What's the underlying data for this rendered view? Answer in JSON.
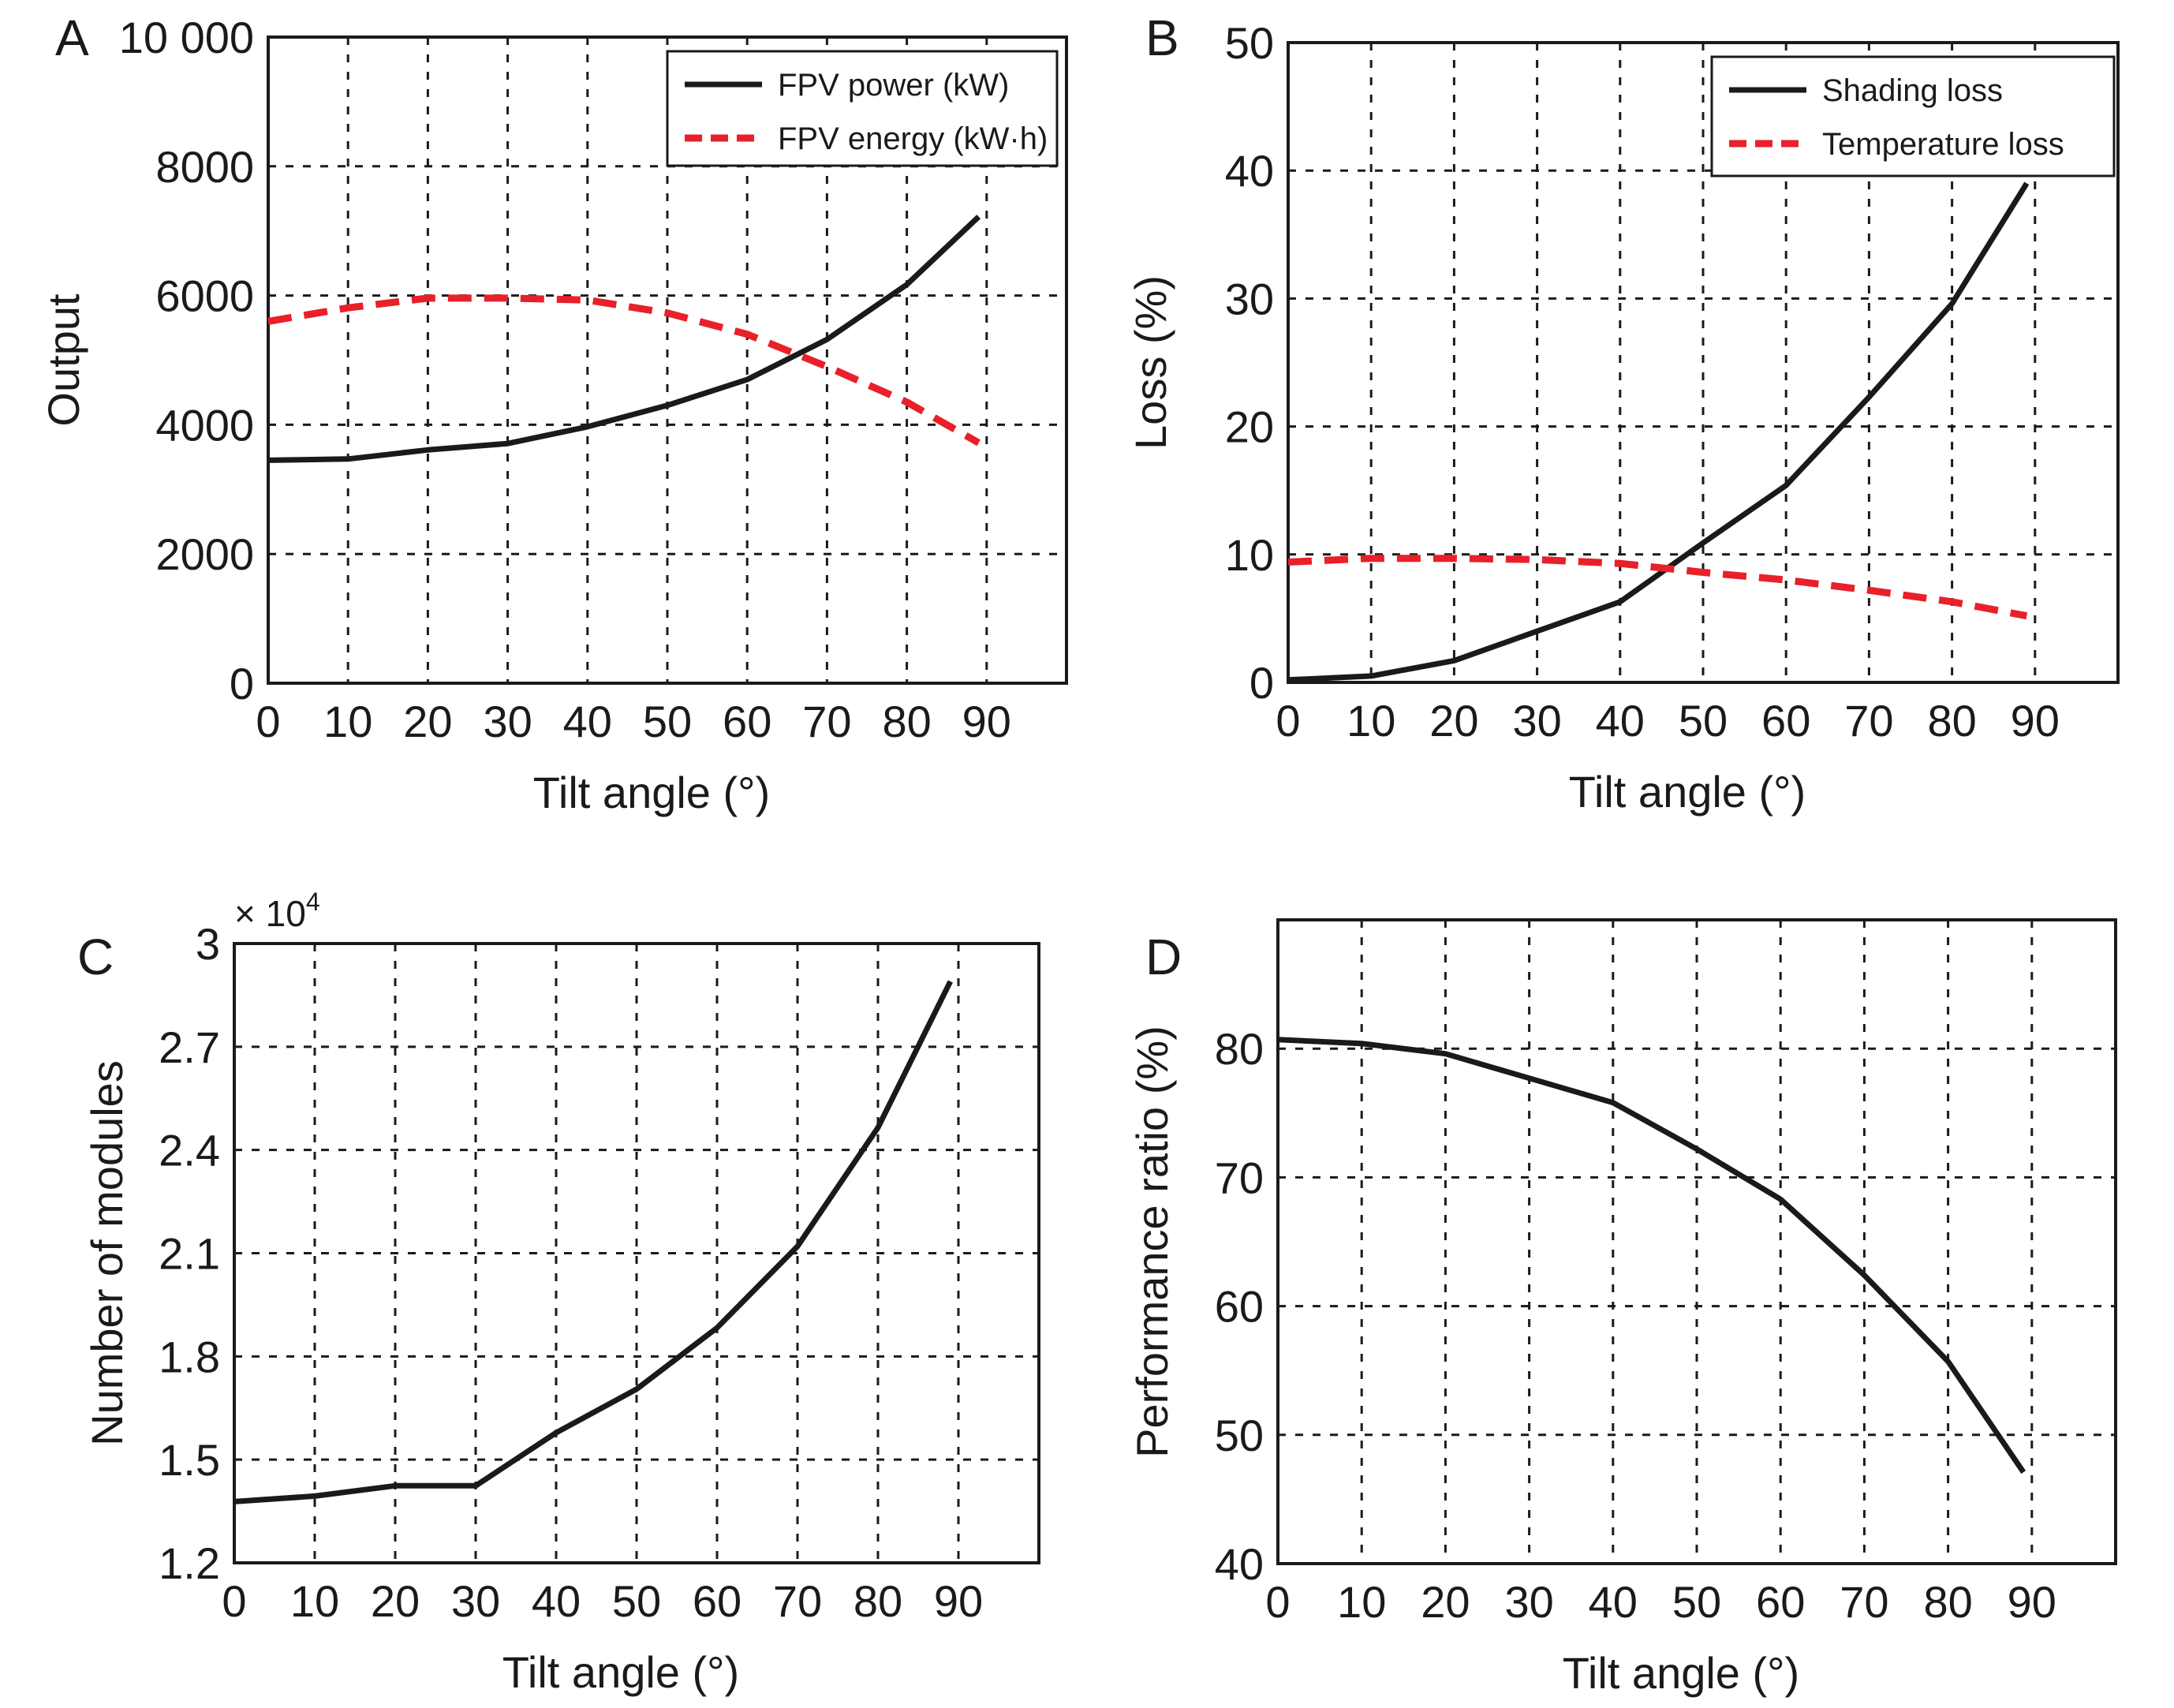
{
  "figure": {
    "panels": [
      "A",
      "B",
      "C",
      "D"
    ]
  },
  "chart_data": [
    {
      "panel": "A",
      "type": "line",
      "title": "",
      "xlabel": "Tilt angle (°)",
      "ylabel": "Output",
      "xlim": [
        0,
        100
      ],
      "ylim": [
        0,
        10000
      ],
      "xticks": [
        0,
        10,
        20,
        30,
        40,
        50,
        60,
        70,
        80,
        90
      ],
      "xtick_labels": [
        "0",
        "10",
        "20",
        "30",
        "40",
        "50",
        "60",
        "70",
        "80",
        "90"
      ],
      "yticks": [
        0,
        2000,
        4000,
        6000,
        8000,
        10000
      ],
      "ytick_labels": [
        "0",
        "2000",
        "4000",
        "6000",
        "8000",
        "10 000"
      ],
      "y_multiplier": "",
      "grid": true,
      "legend": "top-right",
      "x": [
        0,
        10,
        20,
        30,
        40,
        50,
        60,
        70,
        80,
        89
      ],
      "series": [
        {
          "name": "FPV power (kW)",
          "color": "#1a1a1a",
          "style": "solid",
          "values": [
            3450,
            3470,
            3610,
            3710,
            3970,
            4300,
            4700,
            5320,
            6170,
            7220
          ]
        },
        {
          "name": "FPV energy (kW·h)",
          "color": "#e8202a",
          "style": "dashed",
          "values": [
            5600,
            5810,
            5960,
            5960,
            5930,
            5730,
            5400,
            4900,
            4350,
            3720
          ]
        }
      ]
    },
    {
      "panel": "B",
      "type": "line",
      "title": "",
      "xlabel": "Tilt angle (°)",
      "ylabel": "Loss (%)",
      "xlim": [
        0,
        100
      ],
      "ylim": [
        0,
        50
      ],
      "xticks": [
        0,
        10,
        20,
        30,
        40,
        50,
        60,
        70,
        80,
        90
      ],
      "xtick_labels": [
        "0",
        "10",
        "20",
        "30",
        "40",
        "50",
        "60",
        "70",
        "80",
        "90"
      ],
      "yticks": [
        0,
        10,
        20,
        30,
        40,
        50
      ],
      "ytick_labels": [
        "0",
        "10",
        "20",
        "30",
        "40",
        "50"
      ],
      "y_multiplier": "",
      "grid": true,
      "legend": "top-right",
      "x": [
        0,
        10,
        20,
        30,
        40,
        50,
        60,
        70,
        80,
        89
      ],
      "series": [
        {
          "name": "Shading loss",
          "color": "#1a1a1a",
          "style": "solid",
          "values": [
            0.2,
            0.5,
            1.7,
            4.0,
            6.3,
            10.9,
            15.4,
            22.3,
            29.6,
            39.0
          ]
        },
        {
          "name": "Temperature loss",
          "color": "#e8202a",
          "style": "dashed",
          "values": [
            9.4,
            9.7,
            9.7,
            9.6,
            9.3,
            8.6,
            8.0,
            7.2,
            6.3,
            5.2
          ]
        }
      ]
    },
    {
      "panel": "C",
      "type": "line",
      "title": "",
      "xlabel": "Tilt angle (°)",
      "ylabel": "Number of modules",
      "xlim": [
        0,
        100
      ],
      "ylim": [
        1.2,
        3.0
      ],
      "xticks": [
        0,
        10,
        20,
        30,
        40,
        50,
        60,
        70,
        80,
        90
      ],
      "xtick_labels": [
        "0",
        "10",
        "20",
        "30",
        "40",
        "50",
        "60",
        "70",
        "80",
        "90"
      ],
      "yticks": [
        1.2,
        1.5,
        1.8,
        2.1,
        2.4,
        2.7,
        3.0
      ],
      "ytick_labels": [
        "1.2",
        "1.5",
        "1.8",
        "2.1",
        "2.4",
        "2.7",
        "3"
      ],
      "y_multiplier": "× 10",
      "y_multiplier_exp": "4",
      "grid": true,
      "legend": "none",
      "x": [
        0,
        10,
        20,
        30,
        40,
        50,
        60,
        70,
        80,
        89
      ],
      "series": [
        {
          "name": "Number of modules",
          "color": "#1a1a1a",
          "style": "solid",
          "values": [
            1.378,
            1.394,
            1.424,
            1.424,
            1.578,
            1.705,
            1.883,
            2.12,
            2.465,
            2.89
          ]
        }
      ]
    },
    {
      "panel": "D",
      "type": "line",
      "title": "",
      "xlabel": "Tilt angle (°)",
      "ylabel": "Performance ratio (%)",
      "xlim": [
        0,
        100
      ],
      "ylim": [
        40,
        90
      ],
      "xticks": [
        0,
        10,
        20,
        30,
        40,
        50,
        60,
        70,
        80,
        90
      ],
      "xtick_labels": [
        "0",
        "10",
        "20",
        "30",
        "40",
        "50",
        "60",
        "70",
        "80",
        "90"
      ],
      "yticks": [
        40,
        50,
        60,
        70,
        80
      ],
      "ytick_labels": [
        "40",
        "50",
        "60",
        "70",
        "80"
      ],
      "y_multiplier": "",
      "grid": true,
      "legend": "none",
      "x": [
        0,
        10,
        20,
        30,
        40,
        50,
        60,
        70,
        80,
        89
      ],
      "series": [
        {
          "name": "Performance ratio",
          "color": "#1a1a1a",
          "style": "solid",
          "values": [
            80.7,
            80.4,
            79.6,
            77.7,
            75.8,
            72.2,
            68.3,
            62.4,
            55.7,
            47.1
          ]
        }
      ]
    }
  ]
}
